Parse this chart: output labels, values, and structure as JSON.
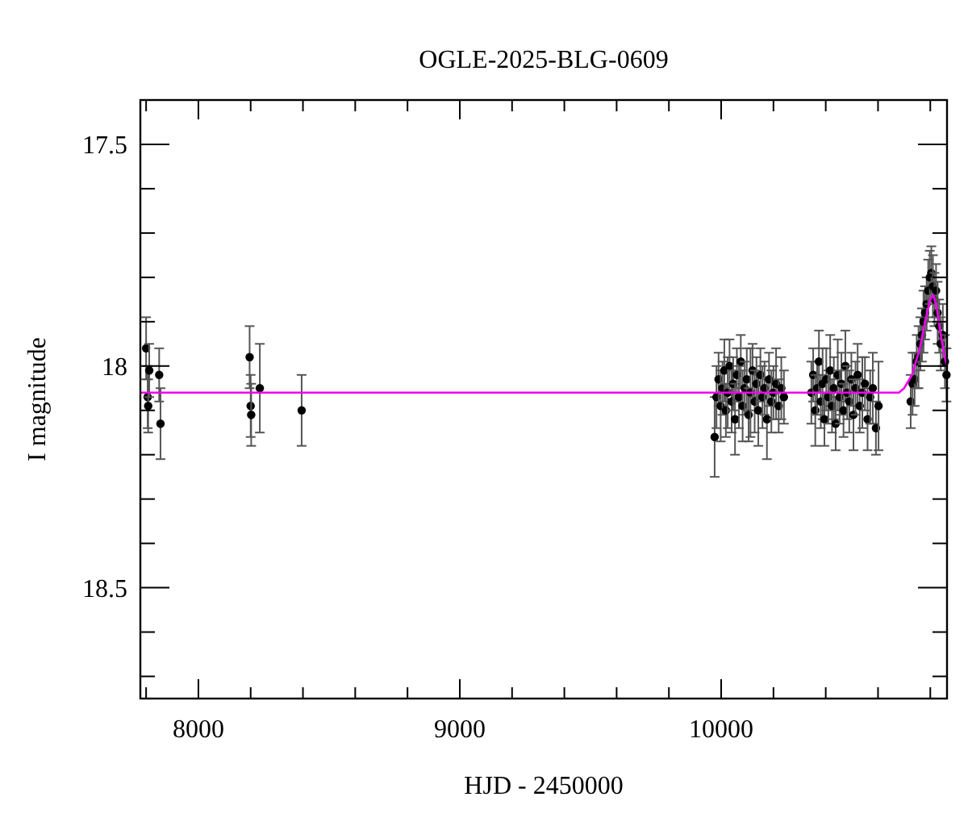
{
  "chart_data": {
    "type": "scatter",
    "title": "OGLE-2025-BLG-0609",
    "xlabel": "HJD - 2450000",
    "ylabel": "I magnitude",
    "xlim": [
      7778,
      10864
    ],
    "ylim": [
      18.75,
      17.4
    ],
    "xticks": [
      {
        "value": 7800,
        "label": null
      },
      8000,
      {
        "value": 8200,
        "label": null
      },
      {
        "value": 8400,
        "label": null
      },
      {
        "value": 8600,
        "label": null
      },
      {
        "value": 8800,
        "label": null
      },
      9000,
      {
        "value": 9200,
        "label": null
      },
      {
        "value": 9400,
        "label": null
      },
      {
        "value": 9600,
        "label": null
      },
      {
        "value": 9800,
        "label": null
      },
      10000,
      {
        "value": 10200,
        "label": null
      },
      {
        "value": 10400,
        "label": null
      },
      {
        "value": 10600,
        "label": null
      },
      {
        "value": 10800,
        "label": null
      }
    ],
    "yticks": [
      17.5,
      {
        "value": 17.6,
        "label": null
      },
      {
        "value": 17.7,
        "label": null
      },
      {
        "value": 17.8,
        "label": null
      },
      {
        "value": 17.9,
        "label": null
      },
      18,
      {
        "value": 18.1,
        "label": null
      },
      {
        "value": 18.2,
        "label": null
      },
      {
        "value": 18.3,
        "label": null
      },
      {
        "value": 18.4,
        "label": null
      },
      18.5,
      {
        "value": 18.6,
        "label": null
      },
      {
        "value": 18.7,
        "label": null
      }
    ],
    "grid": false,
    "marker": "circle",
    "series": [
      {
        "color": "#000000",
        "x": [
          7800,
          7806,
          7808,
          7812,
          7850,
          7855,
          8196,
          8200,
          8202,
          8235,
          8395,
          9975,
          9982,
          9990,
          9998,
          10005,
          10012,
          10018,
          10025,
          10032,
          10040,
          10046,
          10053,
          10060,
          10068,
          10075,
          10082,
          10090,
          10098,
          10105,
          10112,
          10120,
          10128,
          10135,
          10142,
          10150,
          10158,
          10166,
          10175,
          10183,
          10192,
          10200,
          10210,
          10220,
          10230,
          10240,
          10345,
          10352,
          10360,
          10367,
          10374,
          10381,
          10388,
          10395,
          10402,
          10410,
          10417,
          10424,
          10431,
          10438,
          10446,
          10453,
          10460,
          10468,
          10475,
          10482,
          10490,
          10498,
          10506,
          10514,
          10522,
          10530,
          10540,
          10550,
          10560,
          10570,
          10580,
          10592,
          10602,
          10725,
          10732,
          10740,
          10748,
          10755,
          10762,
          10768,
          10774,
          10780,
          10786,
          10792,
          10798,
          10804,
          10810,
          10816,
          10822,
          10828,
          10834,
          10840,
          10848,
          10856,
          10862
        ],
        "values": [
          17.96,
          18.07,
          18.09,
          18.01,
          18.02,
          18.13,
          17.98,
          18.09,
          18.11,
          18.05,
          18.1,
          18.16,
          18.07,
          18.03,
          18.09,
          18.05,
          18.01,
          18.1,
          18.06,
          18,
          18.08,
          18.04,
          18.12,
          18.02,
          18.07,
          17.99,
          18.09,
          18.05,
          18.03,
          18.11,
          18.06,
          18.01,
          18.08,
          18.04,
          18.1,
          18.02,
          18.07,
          18.05,
          18.12,
          18.03,
          18.08,
          18.06,
          18.04,
          18.09,
          18.05,
          18.07,
          18.06,
          18.02,
          18.1,
          18.05,
          17.99,
          18.08,
          18.04,
          18.12,
          18.03,
          18.07,
          18.01,
          18.09,
          18.05,
          18.13,
          18.02,
          18.07,
          18.04,
          18.1,
          18,
          18.06,
          18.08,
          18.03,
          18.11,
          18.05,
          18.02,
          18.09,
          18.06,
          18.04,
          18.12,
          18.07,
          18.05,
          18.14,
          18.09,
          18.08,
          18.04,
          18.03,
          17.99,
          17.98,
          17.95,
          17.93,
          17.9,
          17.88,
          17.86,
          17.83,
          17.8,
          17.79,
          17.82,
          17.85,
          17.83,
          17.88,
          17.91,
          17.95,
          17.93,
          17.99,
          18.02
        ],
        "errors": [
          0.07,
          0.07,
          0.06,
          0.06,
          0.06,
          0.08,
          0.07,
          0.07,
          0.07,
          0.1,
          0.08,
          0.09,
          0.07,
          0.06,
          0.08,
          0.06,
          0.07,
          0.06,
          0.08,
          0.06,
          0.07,
          0.06,
          0.08,
          0.06,
          0.07,
          0.06,
          0.08,
          0.06,
          0.07,
          0.06,
          0.1,
          0.06,
          0.07,
          0.06,
          0.08,
          0.06,
          0.07,
          0.06,
          0.09,
          0.06,
          0.07,
          0.06,
          0.08,
          0.06,
          0.07,
          0.06,
          0.07,
          0.06,
          0.08,
          0.06,
          0.07,
          0.06,
          0.08,
          0.06,
          0.07,
          0.06,
          0.08,
          0.06,
          0.07,
          0.06,
          0.08,
          0.06,
          0.07,
          0.06,
          0.08,
          0.06,
          0.07,
          0.06,
          0.08,
          0.06,
          0.07,
          0.06,
          0.08,
          0.06,
          0.07,
          0.06,
          0.08,
          0.06,
          0.1,
          0.06,
          0.07,
          0.06,
          0.06,
          0.07,
          0.06,
          0.06,
          0.07,
          0.06,
          0.06,
          0.07,
          0.06,
          0.06,
          0.07,
          0.06,
          0.06,
          0.07,
          0.06,
          0.06,
          0.07,
          0.06,
          0.06
        ]
      },
      {
        "type": "line",
        "color": "#ee00ee",
        "marker": "none",
        "x": [
          7778,
          10680,
          10700,
          10730,
          10760,
          10780,
          10800,
          10812,
          10825,
          10840,
          10855,
          10864
        ],
        "values": [
          18.06,
          18.06,
          18.05,
          18.02,
          17.96,
          17.9,
          17.85,
          17.84,
          17.87,
          17.93,
          17.98,
          18
        ]
      }
    ]
  }
}
